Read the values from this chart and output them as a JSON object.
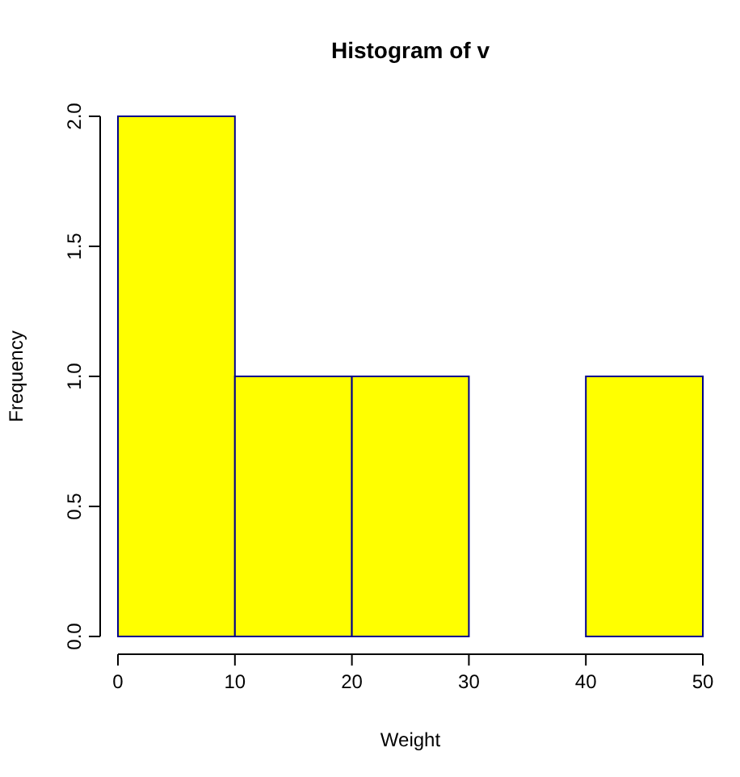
{
  "chart_data": {
    "type": "histogram",
    "title": "Histogram of v",
    "xlabel": "Weight",
    "ylabel": "Frequency",
    "bins": [
      0,
      10,
      20,
      30,
      40,
      50
    ],
    "values": [
      2,
      1,
      1,
      0,
      1
    ],
    "color": "#ffff00",
    "xlim": [
      0,
      50
    ],
    "xticks": [
      0,
      10,
      20,
      30,
      40,
      50
    ],
    "ylim": [
      0,
      2
    ],
    "yticks": [
      {
        "value": 0,
        "label": "0.0"
      },
      {
        "value": 0.5,
        "label": "0.5"
      },
      {
        "value": 1,
        "label": "1.0"
      },
      {
        "value": 1.5,
        "label": "1.5"
      },
      {
        "value": 2,
        "label": "2.0"
      }
    ],
    "grid": false
  }
}
